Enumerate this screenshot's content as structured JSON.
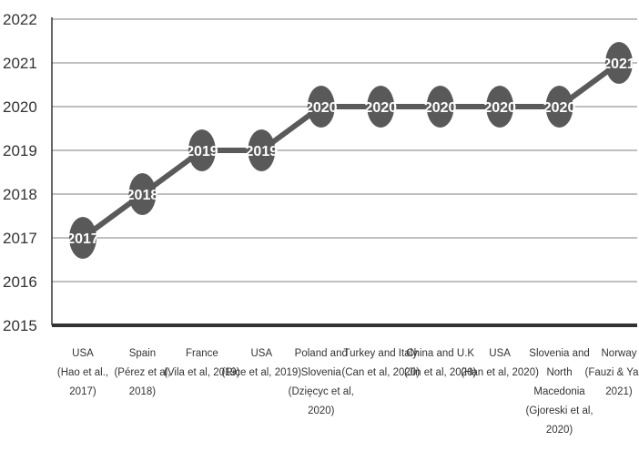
{
  "chart_data": {
    "type": "line",
    "title": "",
    "xlabel": "",
    "ylabel": "",
    "ylim": [
      2015,
      2022
    ],
    "yticks": [
      "2015",
      "2016",
      "2017",
      "2018",
      "2019",
      "2020",
      "2021",
      "2022"
    ],
    "grid": true,
    "legend": "none",
    "categories": [
      [
        "USA",
        "(Hao et al.,",
        "2017)"
      ],
      [
        "Spain",
        "(Pérez et al,",
        "2018)"
      ],
      [
        "France",
        "(Vila et al, 2019)"
      ],
      [
        "USA",
        "(Rice et al, 2019)"
      ],
      [
        "Poland and",
        "Slovenia",
        "(Dzięcyc et al,",
        "2020)"
      ],
      [
        "Turkey and Italy",
        "(Can et al, 2020)"
      ],
      [
        "China and U.K",
        "(Jin et al, 2020)"
      ],
      [
        "USA",
        "(Han et al, 2020)"
      ],
      [
        "Slovenia and",
        "North",
        "Macedonia",
        "(Gjoreski et al,",
        "2020)"
      ],
      [
        "Norway",
        "(Fauzi & Yang,",
        "2021)"
      ]
    ],
    "values": [
      2017,
      2018,
      2019,
      2019,
      2020,
      2020,
      2020,
      2020,
      2020,
      2021
    ],
    "data_labels": [
      "2017",
      "2018",
      "2019",
      "2019",
      "2020",
      "2020",
      "2020",
      "2020",
      "2020",
      "2021"
    ],
    "colors": {
      "line": "#5a5a5a",
      "marker": "#595959",
      "marker_label": "#ffffff",
      "grid": "#bfbfbf",
      "axis": "#333333",
      "text": "#333333"
    }
  }
}
